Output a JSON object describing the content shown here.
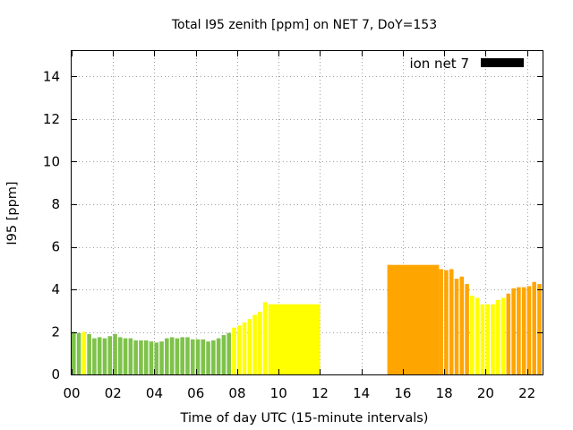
{
  "chart_data": {
    "type": "bar",
    "title": "Total I95 zenith [ppm] on NET 7, DoY=153",
    "xlabel": "Time of day UTC (15-minute intervals)",
    "ylabel": "I95 [ppm]",
    "xlim": [
      0,
      22.75
    ],
    "ylim": [
      0,
      15.2
    ],
    "xtick_values": [
      0,
      2,
      4,
      6,
      8,
      10,
      12,
      14,
      16,
      18,
      20,
      22
    ],
    "xtick_labels": [
      "00",
      "02",
      "04",
      "06",
      "08",
      "10",
      "12",
      "14",
      "16",
      "18",
      "20",
      "22"
    ],
    "ytick_values": [
      0,
      2,
      4,
      6,
      8,
      10,
      12,
      14
    ],
    "ytick_labels": [
      "0",
      "2",
      "4",
      "6",
      "8",
      "10",
      "12",
      "14"
    ],
    "grid": true,
    "legend": {
      "label": "ion net 7",
      "color": "#000000",
      "position": "top-right"
    },
    "level_colors": {
      "green": "#7ec24a",
      "yellow": "#ffff00",
      "orange": "#ffa500"
    },
    "bars": [
      {
        "x": 0.0,
        "width": 0.25,
        "y": 2.0,
        "level": "green"
      },
      {
        "x": 0.25,
        "width": 0.25,
        "y": 1.95,
        "level": "green"
      },
      {
        "x": 0.5,
        "width": 0.25,
        "y": 2.0,
        "level": "yellow"
      },
      {
        "x": 0.75,
        "width": 0.25,
        "y": 1.9,
        "level": "green"
      },
      {
        "x": 1.0,
        "width": 0.25,
        "y": 1.7,
        "level": "green"
      },
      {
        "x": 1.25,
        "width": 0.25,
        "y": 1.75,
        "level": "green"
      },
      {
        "x": 1.5,
        "width": 0.25,
        "y": 1.7,
        "level": "green"
      },
      {
        "x": 1.75,
        "width": 0.25,
        "y": 1.8,
        "level": "green"
      },
      {
        "x": 2.0,
        "width": 0.25,
        "y": 1.9,
        "level": "green"
      },
      {
        "x": 2.25,
        "width": 0.25,
        "y": 1.75,
        "level": "green"
      },
      {
        "x": 2.5,
        "width": 0.25,
        "y": 1.7,
        "level": "green"
      },
      {
        "x": 2.75,
        "width": 0.25,
        "y": 1.7,
        "level": "green"
      },
      {
        "x": 3.0,
        "width": 0.25,
        "y": 1.6,
        "level": "green"
      },
      {
        "x": 3.25,
        "width": 0.25,
        "y": 1.6,
        "level": "green"
      },
      {
        "x": 3.5,
        "width": 0.25,
        "y": 1.6,
        "level": "green"
      },
      {
        "x": 3.75,
        "width": 0.25,
        "y": 1.55,
        "level": "green"
      },
      {
        "x": 4.0,
        "width": 0.25,
        "y": 1.5,
        "level": "green"
      },
      {
        "x": 4.25,
        "width": 0.25,
        "y": 1.55,
        "level": "green"
      },
      {
        "x": 4.5,
        "width": 0.25,
        "y": 1.7,
        "level": "green"
      },
      {
        "x": 4.75,
        "width": 0.25,
        "y": 1.75,
        "level": "green"
      },
      {
        "x": 5.0,
        "width": 0.25,
        "y": 1.7,
        "level": "green"
      },
      {
        "x": 5.25,
        "width": 0.25,
        "y": 1.75,
        "level": "green"
      },
      {
        "x": 5.5,
        "width": 0.25,
        "y": 1.75,
        "level": "green"
      },
      {
        "x": 5.75,
        "width": 0.25,
        "y": 1.65,
        "level": "green"
      },
      {
        "x": 6.0,
        "width": 0.25,
        "y": 1.65,
        "level": "green"
      },
      {
        "x": 6.25,
        "width": 0.25,
        "y": 1.65,
        "level": "green"
      },
      {
        "x": 6.5,
        "width": 0.25,
        "y": 1.55,
        "level": "green"
      },
      {
        "x": 6.75,
        "width": 0.25,
        "y": 1.6,
        "level": "green"
      },
      {
        "x": 7.0,
        "width": 0.25,
        "y": 1.7,
        "level": "green"
      },
      {
        "x": 7.25,
        "width": 0.25,
        "y": 1.85,
        "level": "green"
      },
      {
        "x": 7.5,
        "width": 0.25,
        "y": 1.95,
        "level": "green"
      },
      {
        "x": 7.75,
        "width": 0.25,
        "y": 2.2,
        "level": "yellow"
      },
      {
        "x": 8.0,
        "width": 0.25,
        "y": 2.3,
        "level": "yellow"
      },
      {
        "x": 8.25,
        "width": 0.25,
        "y": 2.45,
        "level": "yellow"
      },
      {
        "x": 8.5,
        "width": 0.25,
        "y": 2.6,
        "level": "yellow"
      },
      {
        "x": 8.75,
        "width": 0.25,
        "y": 2.8,
        "level": "yellow"
      },
      {
        "x": 9.0,
        "width": 0.25,
        "y": 2.95,
        "level": "yellow"
      },
      {
        "x": 9.25,
        "width": 0.25,
        "y": 3.4,
        "level": "yellow"
      },
      {
        "x": 9.5,
        "width": 2.5,
        "y": 3.3,
        "level": "yellow"
      },
      {
        "x": 15.25,
        "width": 2.5,
        "y": 5.15,
        "level": "orange"
      },
      {
        "x": 17.75,
        "width": 0.25,
        "y": 4.95,
        "level": "orange"
      },
      {
        "x": 18.0,
        "width": 0.25,
        "y": 4.9,
        "level": "orange"
      },
      {
        "x": 18.25,
        "width": 0.25,
        "y": 4.95,
        "level": "orange"
      },
      {
        "x": 18.5,
        "width": 0.25,
        "y": 4.5,
        "level": "orange"
      },
      {
        "x": 18.75,
        "width": 0.25,
        "y": 4.6,
        "level": "orange"
      },
      {
        "x": 19.0,
        "width": 0.25,
        "y": 4.25,
        "level": "orange"
      },
      {
        "x": 19.25,
        "width": 0.25,
        "y": 3.7,
        "level": "yellow"
      },
      {
        "x": 19.5,
        "width": 0.25,
        "y": 3.6,
        "level": "yellow"
      },
      {
        "x": 19.75,
        "width": 0.25,
        "y": 3.3,
        "level": "yellow"
      },
      {
        "x": 20.0,
        "width": 0.25,
        "y": 3.3,
        "level": "yellow"
      },
      {
        "x": 20.25,
        "width": 0.25,
        "y": 3.3,
        "level": "yellow"
      },
      {
        "x": 20.5,
        "width": 0.25,
        "y": 3.5,
        "level": "yellow"
      },
      {
        "x": 20.75,
        "width": 0.25,
        "y": 3.6,
        "level": "yellow"
      },
      {
        "x": 21.0,
        "width": 0.25,
        "y": 3.8,
        "level": "orange"
      },
      {
        "x": 21.25,
        "width": 0.25,
        "y": 4.05,
        "level": "orange"
      },
      {
        "x": 21.5,
        "width": 0.25,
        "y": 4.1,
        "level": "orange"
      },
      {
        "x": 21.75,
        "width": 0.25,
        "y": 4.1,
        "level": "orange"
      },
      {
        "x": 22.0,
        "width": 0.25,
        "y": 4.15,
        "level": "orange"
      },
      {
        "x": 22.25,
        "width": 0.25,
        "y": 4.35,
        "level": "orange"
      },
      {
        "x": 22.5,
        "width": 0.25,
        "y": 4.25,
        "level": "orange"
      }
    ]
  }
}
